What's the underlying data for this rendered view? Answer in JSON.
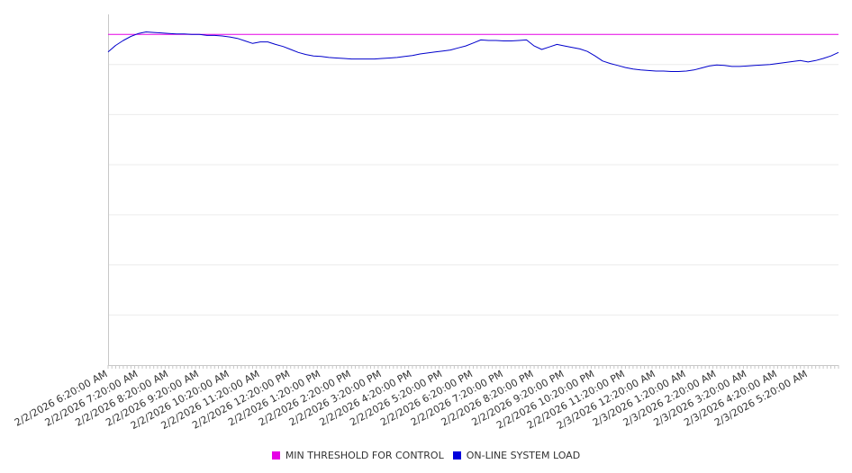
{
  "chart_data": {
    "type": "line",
    "title": "",
    "xlabel": "",
    "ylabel": "",
    "x_tick_labels": [
      "2/2/2026 6:20:00 AM",
      "2/2/2026 7:20:00 AM",
      "2/2/2026 8:20:00 AM",
      "2/2/2026 9:20:00 AM",
      "2/2/2026 10:20:00 AM",
      "2/2/2026 11:20:00 AM",
      "2/2/2026 12:20:00 PM",
      "2/2/2026 1:20:00 PM",
      "2/2/2026 2:20:00 PM",
      "2/2/2026 3:20:00 PM",
      "2/2/2026 4:20:00 PM",
      "2/2/2026 5:20:00 PM",
      "2/2/2026 6:20:00 PM",
      "2/2/2026 7:20:00 PM",
      "2/2/2026 8:20:00 PM",
      "2/2/2026 9:20:00 PM",
      "2/2/2026 10:20:00 PM",
      "2/2/2026 11:20:00 PM",
      "2/3/2026 12:20:00 AM",
      "2/3/2026 1:20:00 AM",
      "2/3/2026 2:20:00 AM",
      "2/3/2026 3:20:00 AM",
      "2/3/2026 4:20:00 AM",
      "2/3/2026 5:20:00 AM"
    ],
    "x_range_hours": [
      0,
      24
    ],
    "ylim": [
      0,
      7
    ],
    "grid": true,
    "legend_position": "bottom-center",
    "series": [
      {
        "name": "MIN THRESHOLD FOR CONTROL",
        "color": "#e600e6",
        "x": [
          0,
          24
        ],
        "values": [
          6.6,
          6.6
        ]
      },
      {
        "name": "ON-LINE SYSTEM LOAD",
        "color": "#0000cc",
        "x": [
          0,
          0.25,
          0.5,
          0.75,
          1,
          1.25,
          1.5,
          1.75,
          2,
          2.25,
          2.5,
          2.75,
          3,
          3.25,
          3.5,
          3.75,
          4,
          4.25,
          4.5,
          4.75,
          5,
          5.25,
          5.5,
          5.75,
          6,
          6.25,
          6.5,
          6.75,
          7,
          7.25,
          7.5,
          7.75,
          8,
          8.25,
          8.5,
          8.75,
          9,
          9.25,
          9.5,
          9.75,
          10,
          10.25,
          10.5,
          10.75,
          11,
          11.25,
          11.5,
          11.75,
          12,
          12.25,
          12.5,
          12.75,
          13,
          13.25,
          13.5,
          13.75,
          14,
          14.25,
          14.5,
          14.75,
          15,
          15.25,
          15.5,
          15.75,
          16,
          16.25,
          16.5,
          16.75,
          17,
          17.25,
          17.5,
          17.75,
          18,
          18.25,
          18.5,
          18.75,
          19,
          19.25,
          19.5,
          19.75,
          20,
          20.25,
          20.5,
          20.75,
          21,
          21.25,
          21.5,
          21.75,
          22,
          22.25,
          22.5,
          22.75,
          23,
          23.25,
          23.5,
          23.75,
          24
        ],
        "values": [
          6.25,
          6.38,
          6.48,
          6.56,
          6.62,
          6.65,
          6.64,
          6.63,
          6.62,
          6.61,
          6.61,
          6.6,
          6.6,
          6.58,
          6.58,
          6.57,
          6.55,
          6.52,
          6.47,
          6.42,
          6.45,
          6.45,
          6.4,
          6.36,
          6.3,
          6.24,
          6.2,
          6.17,
          6.16,
          6.14,
          6.13,
          6.12,
          6.11,
          6.11,
          6.11,
          6.11,
          6.12,
          6.13,
          6.14,
          6.16,
          6.18,
          6.21,
          6.23,
          6.25,
          6.27,
          6.29,
          6.33,
          6.37,
          6.43,
          6.49,
          6.48,
          6.48,
          6.47,
          6.47,
          6.48,
          6.49,
          6.37,
          6.3,
          6.35,
          6.4,
          6.37,
          6.34,
          6.31,
          6.26,
          6.17,
          6.07,
          6.02,
          5.98,
          5.94,
          5.91,
          5.89,
          5.88,
          5.87,
          5.87,
          5.86,
          5.86,
          5.87,
          5.89,
          5.93,
          5.97,
          5.99,
          5.98,
          5.96,
          5.96,
          5.97,
          5.98,
          5.99,
          6.0,
          6.02,
          6.04,
          6.06,
          6.08,
          6.05,
          6.08,
          6.12,
          6.17,
          6.24
        ]
      }
    ]
  }
}
